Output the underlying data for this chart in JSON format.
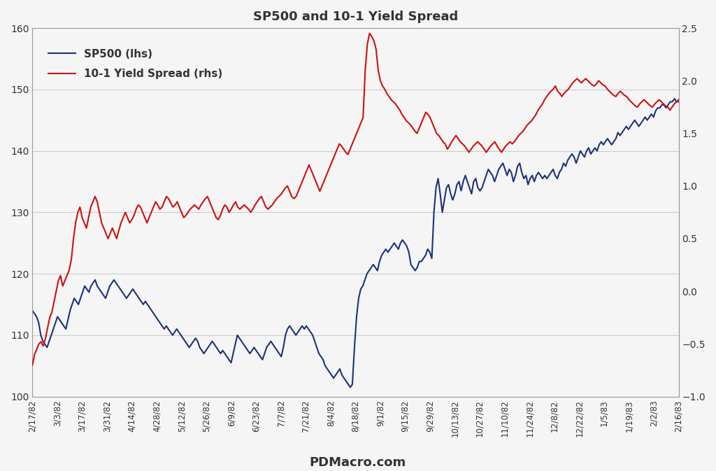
{
  "title": "SP500 and 10-1 Yield Spread",
  "footer": "PDMacro.com",
  "sp500_color": "#1c3278",
  "spread_color": "#cc1111",
  "bg_color": "#f5f5f5",
  "grid_color": "#cccccc",
  "left_ylim": [
    100,
    160
  ],
  "right_ylim": [
    -1,
    2.5
  ],
  "left_yticks": [
    100,
    110,
    120,
    130,
    140,
    150,
    160
  ],
  "right_yticks": [
    -1,
    -0.5,
    0,
    0.5,
    1,
    1.5,
    2,
    2.5
  ],
  "xtick_labels": [
    "2/17/82",
    "3/3/82",
    "3/17/82",
    "3/31/82",
    "4/14/82",
    "4/28/82",
    "5/12/82",
    "5/26/82",
    "6/9/82",
    "6/23/82",
    "7/7/82",
    "7/21/82",
    "8/4/82",
    "8/18/82",
    "9/1/82",
    "9/15/82",
    "9/29/82",
    "10/13/82",
    "10/27/82",
    "11/10/82",
    "11/24/82",
    "12/8/82",
    "12/22/82",
    "1/5/83",
    "1/19/83",
    "2/2/83",
    "2/16/83"
  ],
  "sp500": [
    114.0,
    113.5,
    113.0,
    112.0,
    110.0,
    109.0,
    108.5,
    108.0,
    109.0,
    110.0,
    111.0,
    112.0,
    113.0,
    112.5,
    112.0,
    111.5,
    111.0,
    112.5,
    114.0,
    115.0,
    116.0,
    115.5,
    115.0,
    116.0,
    117.0,
    118.0,
    117.5,
    117.0,
    118.0,
    118.5,
    119.0,
    118.0,
    117.5,
    117.0,
    116.5,
    116.0,
    117.0,
    118.0,
    118.5,
    119.0,
    118.5,
    118.0,
    117.5,
    117.0,
    116.5,
    116.0,
    116.5,
    117.0,
    117.5,
    117.0,
    116.5,
    116.0,
    115.5,
    115.0,
    115.5,
    115.0,
    114.5,
    114.0,
    113.5,
    113.0,
    112.5,
    112.0,
    111.5,
    111.0,
    111.5,
    111.0,
    110.5,
    110.0,
    110.5,
    111.0,
    110.5,
    110.0,
    109.5,
    109.0,
    108.5,
    108.0,
    108.5,
    109.0,
    109.5,
    109.0,
    108.0,
    107.5,
    107.0,
    107.5,
    108.0,
    108.5,
    109.0,
    108.5,
    108.0,
    107.5,
    107.0,
    107.5,
    107.0,
    106.5,
    106.0,
    105.5,
    107.0,
    108.5,
    110.0,
    109.5,
    109.0,
    108.5,
    108.0,
    107.5,
    107.0,
    107.5,
    108.0,
    107.5,
    107.0,
    106.5,
    106.0,
    107.0,
    108.0,
    108.5,
    109.0,
    108.5,
    108.0,
    107.5,
    107.0,
    106.5,
    108.0,
    110.0,
    111.0,
    111.5,
    111.0,
    110.5,
    110.0,
    110.5,
    111.0,
    111.5,
    111.0,
    111.5,
    111.0,
    110.5,
    110.0,
    109.0,
    108.0,
    107.0,
    106.5,
    106.0,
    105.0,
    104.5,
    104.0,
    103.5,
    103.0,
    103.5,
    104.0,
    104.5,
    103.5,
    103.0,
    102.5,
    102.0,
    101.5,
    102.0,
    108.0,
    113.0,
    116.0,
    117.5,
    118.0,
    119.0,
    120.0,
    120.5,
    121.0,
    121.5,
    121.0,
    120.5,
    122.0,
    123.0,
    123.5,
    124.0,
    123.5,
    124.0,
    124.5,
    125.0,
    124.5,
    124.0,
    125.0,
    125.5,
    125.0,
    124.5,
    123.5,
    121.5,
    121.0,
    120.5,
    121.0,
    122.0,
    122.0,
    122.5,
    123.0,
    124.0,
    123.5,
    122.5,
    130.0,
    134.0,
    135.5,
    133.0,
    130.0,
    132.0,
    134.0,
    134.5,
    133.0,
    132.0,
    133.0,
    134.5,
    135.0,
    133.5,
    135.0,
    136.0,
    135.0,
    134.0,
    133.0,
    135.0,
    135.5,
    134.0,
    133.5,
    134.0,
    135.0,
    136.0,
    137.0,
    136.5,
    136.0,
    135.0,
    136.0,
    137.0,
    137.5,
    138.0,
    137.0,
    136.0,
    137.0,
    136.5,
    135.0,
    136.0,
    137.5,
    138.0,
    136.5,
    135.5,
    136.0,
    134.5,
    135.5,
    136.0,
    135.0,
    136.0,
    136.5,
    136.0,
    135.5,
    136.0,
    135.5,
    136.0,
    136.5,
    137.0,
    136.0,
    135.5,
    136.5,
    137.0,
    138.0,
    137.5,
    138.5,
    139.0,
    139.5,
    139.0,
    138.0,
    139.0,
    140.0,
    139.5,
    139.0,
    140.0,
    140.5,
    139.5,
    140.0,
    140.5,
    140.0,
    141.0,
    141.5,
    141.0,
    141.5,
    142.0,
    141.5,
    141.0,
    141.5,
    142.0,
    143.0,
    142.5,
    143.0,
    143.5,
    144.0,
    143.5,
    144.0,
    144.5,
    145.0,
    144.5,
    144.0,
    144.5,
    145.0,
    145.5,
    145.0,
    145.5,
    146.0,
    145.5,
    146.5,
    147.0,
    147.0,
    147.5,
    147.5,
    147.0,
    147.5,
    148.0,
    148.0,
    148.5,
    148.0,
    148.0
  ],
  "spread": [
    -0.7,
    -0.6,
    -0.55,
    -0.5,
    -0.48,
    -0.52,
    -0.45,
    -0.35,
    -0.25,
    -0.2,
    -0.1,
    0.0,
    0.1,
    0.15,
    0.05,
    0.1,
    0.15,
    0.2,
    0.3,
    0.5,
    0.65,
    0.75,
    0.8,
    0.7,
    0.65,
    0.6,
    0.7,
    0.8,
    0.85,
    0.9,
    0.85,
    0.75,
    0.65,
    0.6,
    0.55,
    0.5,
    0.55,
    0.6,
    0.55,
    0.5,
    0.58,
    0.65,
    0.7,
    0.75,
    0.7,
    0.65,
    0.68,
    0.72,
    0.78,
    0.82,
    0.8,
    0.75,
    0.7,
    0.65,
    0.7,
    0.75,
    0.8,
    0.85,
    0.82,
    0.78,
    0.8,
    0.85,
    0.9,
    0.88,
    0.84,
    0.8,
    0.82,
    0.85,
    0.8,
    0.75,
    0.7,
    0.72,
    0.75,
    0.78,
    0.8,
    0.82,
    0.8,
    0.78,
    0.82,
    0.85,
    0.88,
    0.9,
    0.85,
    0.8,
    0.75,
    0.7,
    0.68,
    0.72,
    0.78,
    0.82,
    0.8,
    0.75,
    0.78,
    0.82,
    0.85,
    0.8,
    0.78,
    0.8,
    0.82,
    0.8,
    0.78,
    0.75,
    0.78,
    0.82,
    0.85,
    0.88,
    0.9,
    0.85,
    0.8,
    0.78,
    0.8,
    0.82,
    0.85,
    0.88,
    0.9,
    0.92,
    0.95,
    0.98,
    1.0,
    0.95,
    0.9,
    0.88,
    0.9,
    0.95,
    1.0,
    1.05,
    1.1,
    1.15,
    1.2,
    1.15,
    1.1,
    1.05,
    1.0,
    0.95,
    1.0,
    1.05,
    1.1,
    1.15,
    1.2,
    1.25,
    1.3,
    1.35,
    1.4,
    1.38,
    1.35,
    1.32,
    1.3,
    1.35,
    1.4,
    1.45,
    1.5,
    1.55,
    1.6,
    1.65,
    2.1,
    2.35,
    2.45,
    2.42,
    2.38,
    2.3,
    2.1,
    2.0,
    1.95,
    1.92,
    1.88,
    1.85,
    1.82,
    1.8,
    1.78,
    1.75,
    1.72,
    1.68,
    1.65,
    1.62,
    1.6,
    1.58,
    1.55,
    1.52,
    1.5,
    1.55,
    1.6,
    1.65,
    1.7,
    1.68,
    1.65,
    1.6,
    1.55,
    1.5,
    1.48,
    1.45,
    1.42,
    1.4,
    1.35,
    1.38,
    1.42,
    1.45,
    1.48,
    1.45,
    1.42,
    1.4,
    1.38,
    1.35,
    1.32,
    1.35,
    1.38,
    1.4,
    1.42,
    1.4,
    1.38,
    1.35,
    1.32,
    1.35,
    1.38,
    1.4,
    1.42,
    1.38,
    1.35,
    1.32,
    1.35,
    1.38,
    1.4,
    1.42,
    1.4,
    1.42,
    1.45,
    1.48,
    1.5,
    1.52,
    1.55,
    1.58,
    1.6,
    1.62,
    1.65,
    1.68,
    1.72,
    1.75,
    1.78,
    1.82,
    1.85,
    1.88,
    1.9,
    1.92,
    1.95,
    1.9,
    1.88,
    1.85,
    1.88,
    1.9,
    1.92,
    1.95,
    1.98,
    2.0,
    2.02,
    2.0,
    1.98,
    2.0,
    2.02,
    2.0,
    1.98,
    1.96,
    1.95,
    1.97,
    2.0,
    1.98,
    1.96,
    1.95,
    1.92,
    1.9,
    1.88,
    1.86,
    1.85,
    1.88,
    1.9,
    1.88,
    1.86,
    1.85,
    1.82,
    1.8,
    1.78,
    1.76,
    1.75,
    1.78,
    1.8,
    1.82,
    1.8,
    1.78,
    1.76,
    1.75,
    1.78,
    1.8,
    1.82,
    1.8,
    1.78,
    1.76,
    1.75,
    1.72,
    1.75,
    1.78,
    1.8,
    1.82
  ]
}
